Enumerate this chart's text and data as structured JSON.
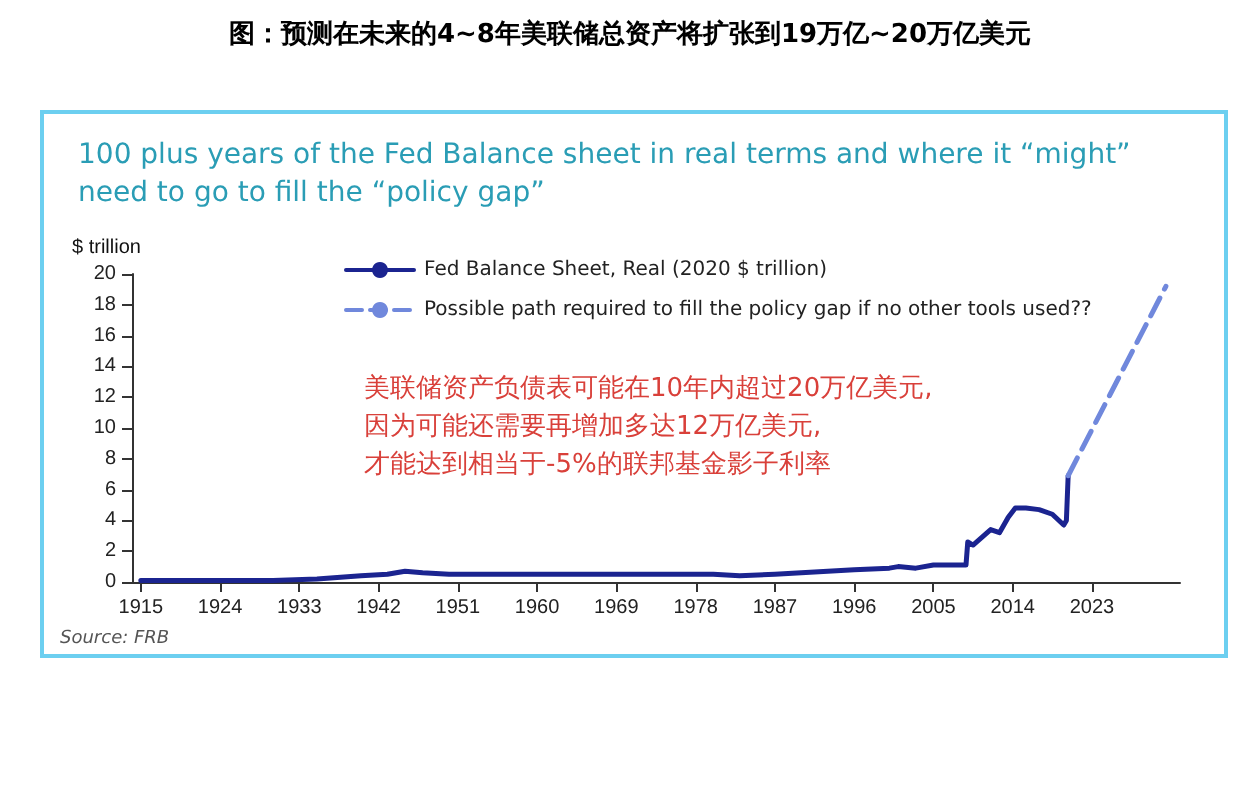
{
  "chart_data": {
    "type": "line",
    "title": "图：预测在未来的4~8年美联储总资产将扩张到19万亿~20万亿美元",
    "subtitle": "100 plus years of the Fed Balance sheet in real terms and where it “might” need to go to fill the “policy gap”",
    "ylabel": "$ trillion",
    "annotations": [
      "美联储资产负债表可能在10年内超过20万亿美元,\n因为可能还需要再增加多达12万亿美元,\n才能达到相当于-5%的联邦基金影子利率",
      "Source: FRB"
    ],
    "series": [
      {
        "name": "Fed Balance Sheet, Real (2020 $ trillion)",
        "color": "#1b2490",
        "line_style": "solid",
        "x": [
          1915,
          1920,
          1925,
          1930,
          1935,
          1940,
          1943,
          1945,
          1947,
          1950,
          1955,
          1960,
          1965,
          1970,
          1975,
          1980,
          1983,
          1987,
          1990,
          1996,
          2000,
          2001,
          2003,
          2005,
          2008.7,
          2008.9,
          2009.5,
          2010.5,
          2011.5,
          2012.5,
          2013.5,
          2014.3,
          2015.5,
          2017,
          2018.5,
          2019.8,
          2020.1,
          2020.3
        ],
        "values": [
          0.1,
          0.1,
          0.1,
          0.1,
          0.2,
          0.4,
          0.5,
          0.7,
          0.6,
          0.5,
          0.5,
          0.5,
          0.5,
          0.5,
          0.5,
          0.5,
          0.4,
          0.5,
          0.6,
          0.8,
          0.9,
          1.0,
          0.9,
          1.1,
          1.1,
          2.6,
          2.4,
          2.9,
          3.4,
          3.2,
          4.2,
          4.8,
          4.8,
          4.7,
          4.4,
          3.7,
          4.0,
          6.9
        ]
      },
      {
        "name": "Possible path required to fill the policy gap if no other tools used??",
        "color": "#7088dc",
        "line_style": "dashed",
        "x": [
          2020.3,
          2031.4
        ],
        "values": [
          6.9,
          19.2
        ]
      }
    ],
    "xlim": [
      1914,
      2033
    ],
    "xticks": [
      1915,
      1924,
      1933,
      1942,
      1951,
      1960,
      1969,
      1978,
      1987,
      1996,
      2005,
      2014,
      2023
    ],
    "ylim": [
      0,
      20
    ],
    "yticks": [
      0,
      2,
      4,
      6,
      8,
      10,
      12,
      14,
      16,
      18,
      20
    ],
    "grid": false,
    "legend": "top",
    "marker": "none"
  }
}
